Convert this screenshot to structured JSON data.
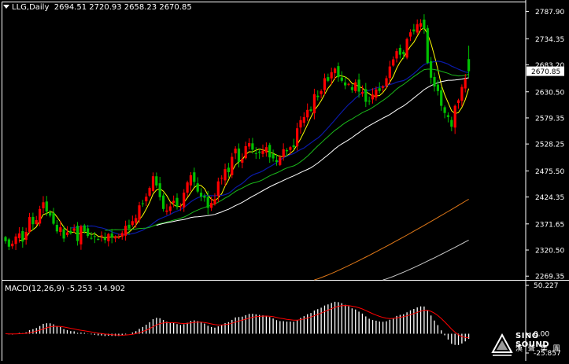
{
  "header": {
    "symbol": "LLG,Daily",
    "ohlc": "2694.51 2720.93 2658.23 2670.85"
  },
  "colors": {
    "background": "#000000",
    "bull": "#ff0000",
    "bear": "#00c000",
    "ma_yellow": "#ffff00",
    "ma_blue": "#0a1aa8",
    "ma_green": "#1ab81a",
    "ma_white": "#ffffff",
    "ma_orange": "#e07818",
    "ma_grey": "#c8c8c8",
    "macd_signal": "#ff0000",
    "macd_hist": "#ffffff",
    "price_tag_bg": "#ffffff",
    "frame": "#ffffff"
  },
  "chart_data": [
    {
      "type": "candlestick",
      "symbol": "LLG",
      "timeframe": "Daily",
      "y_ticks": [
        "2787.90",
        "2734.35",
        "2683.20",
        "2630.50",
        "2579.35",
        "2528.25",
        "2475.50",
        "2424.35",
        "2371.65",
        "2320.50",
        "2269.35"
      ],
      "ylim": [
        2262,
        2798
      ],
      "current_price": "2670.85",
      "last_ohlc": {
        "open": 2694.51,
        "high": 2720.93,
        "low": 2658.23,
        "close": 2670.85
      },
      "closes": [
        2338,
        2327,
        2333,
        2347,
        2353,
        2337,
        2356,
        2385,
        2371,
        2379,
        2401,
        2414,
        2396,
        2388,
        2372,
        2357,
        2365,
        2343,
        2355,
        2353,
        2363,
        2338,
        2367,
        2357,
        2348,
        2344,
        2347,
        2342,
        2349,
        2340,
        2352,
        2345,
        2347,
        2346,
        2354,
        2368,
        2363,
        2377,
        2383,
        2408,
        2411,
        2425,
        2442,
        2465,
        2447,
        2424,
        2401,
        2398,
        2406,
        2417,
        2405,
        2406,
        2433,
        2453,
        2467,
        2454,
        2435,
        2425,
        2423,
        2403,
        2413,
        2420,
        2455,
        2462,
        2479,
        2473,
        2503,
        2519,
        2493,
        2499,
        2524,
        2530,
        2517,
        2510,
        2511,
        2515,
        2522,
        2502,
        2500,
        2493,
        2502,
        2518,
        2514,
        2522,
        2522,
        2559,
        2575,
        2581,
        2595,
        2593,
        2626,
        2620,
        2632,
        2657,
        2652,
        2669,
        2676,
        2659,
        2652,
        2643,
        2646,
        2634,
        2649,
        2631,
        2630,
        2611,
        2612,
        2625,
        2635,
        2632,
        2641,
        2657,
        2680,
        2694,
        2710,
        2703,
        2704,
        2734,
        2747,
        2749,
        2763,
        2765,
        2754,
        2687,
        2658,
        2641,
        2632,
        2603,
        2589,
        2581,
        2562,
        2603,
        2614,
        2640,
        2656,
        2670.85
      ]
    },
    {
      "type": "bar",
      "name": "MACD(12,26,9) -5.253 -14.902",
      "y_ticks": [
        "50.227",
        "0.00",
        "-25.857"
      ],
      "ylim": [
        -28,
        54
      ],
      "macd": -5.253,
      "signal": -14.902
    }
  ]
}
